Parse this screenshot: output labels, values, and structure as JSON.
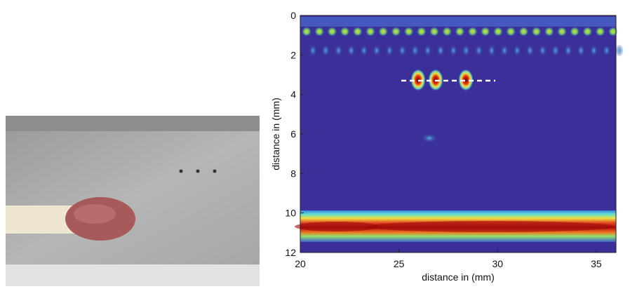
{
  "chart_data": {
    "type": "heatmap",
    "x_label": "distance in (mm)",
    "y_label": "distance in (mm)",
    "xlim": [
      20,
      36
    ],
    "xticks": [
      20,
      25,
      30,
      35
    ],
    "ylim": [
      0,
      12
    ],
    "yticks": [
      0,
      2,
      4,
      6,
      8,
      10,
      12
    ],
    "y_inverted": true
  }
}
